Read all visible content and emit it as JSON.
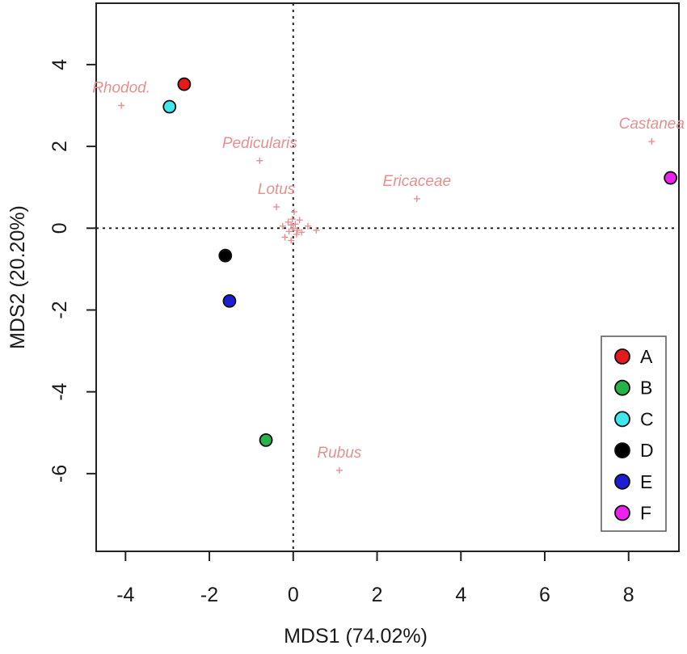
{
  "chart_data": {
    "type": "scatter",
    "title": "",
    "xlabel": "MDS1 (74.02%)",
    "ylabel": "MDS2 (20.20%)",
    "xlim": [
      -4.7,
      9.2
    ],
    "ylim": [
      -7.9,
      5.5
    ],
    "xticks": [
      -4,
      -2,
      0,
      2,
      4,
      6,
      8
    ],
    "yticks": [
      -6,
      -4,
      -2,
      0,
      2,
      4
    ],
    "xtick_labels": [
      "-4",
      "-2",
      "0",
      "2",
      "4",
      "6",
      "8"
    ],
    "ytick_labels": [
      "-6",
      "-4",
      "-2",
      "0",
      "2",
      "4"
    ],
    "reference_lines": {
      "x": 0,
      "y": 0,
      "style": "dotted"
    },
    "grid": false,
    "legend_position": "bottom-right",
    "samples": [
      {
        "name": "A",
        "x": -2.6,
        "y": 3.52,
        "color": "#e41a1c"
      },
      {
        "name": "B",
        "x": -0.65,
        "y": -5.18,
        "color": "#27b34a"
      },
      {
        "name": "C",
        "x": -2.95,
        "y": 2.97,
        "color": "#40e8ee"
      },
      {
        "name": "D",
        "x": -1.62,
        "y": -0.67,
        "color": "#000000"
      },
      {
        "name": "E",
        "x": -1.52,
        "y": -1.78,
        "color": "#1d1dd6"
      },
      {
        "name": "F",
        "x": 9.0,
        "y": 1.23,
        "color": "#ee22ee"
      }
    ],
    "species": [
      {
        "name": "Rhodod.",
        "x": -4.1,
        "y": 3.0
      },
      {
        "name": "Pedicularis",
        "x": -0.8,
        "y": 1.65
      },
      {
        "name": "Lotus",
        "x": -0.4,
        "y": 0.52
      },
      {
        "name": "Ericaceae",
        "x": 2.95,
        "y": 0.72
      },
      {
        "name": "Castanea",
        "x": 8.55,
        "y": 2.12
      },
      {
        "name": "Rubus",
        "x": 1.1,
        "y": -5.92
      }
    ],
    "minor_species": [
      {
        "x": 0.0,
        "y": 0.0
      },
      {
        "x": 0.05,
        "y": 0.1
      },
      {
        "x": -0.05,
        "y": 0.08
      },
      {
        "x": 0.1,
        "y": -0.05
      },
      {
        "x": -0.1,
        "y": -0.08
      },
      {
        "x": 0.02,
        "y": 0.4
      },
      {
        "x": 0.35,
        "y": 0.05
      },
      {
        "x": 0.55,
        "y": -0.05
      },
      {
        "x": -0.2,
        "y": -0.22
      },
      {
        "x": -0.05,
        "y": -0.3
      },
      {
        "x": 0.15,
        "y": 0.2
      },
      {
        "x": -0.12,
        "y": 0.15
      },
      {
        "x": 0.08,
        "y": -0.15
      },
      {
        "x": -0.02,
        "y": 0.22
      },
      {
        "x": 0.2,
        "y": -0.1
      },
      {
        "x": -0.25,
        "y": 0.05
      }
    ],
    "species_color": "#e8908f",
    "legend": {
      "entries": [
        "A",
        "B",
        "C",
        "D",
        "E",
        "F"
      ]
    }
  }
}
